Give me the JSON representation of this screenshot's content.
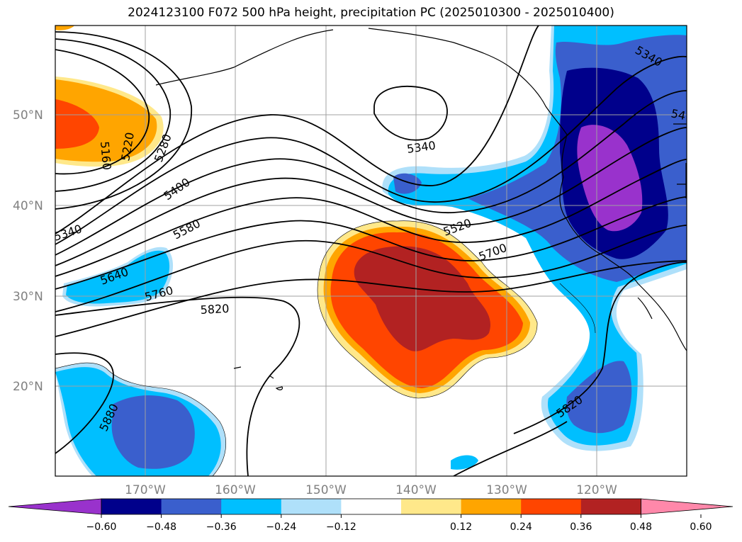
{
  "title": "2024123100 F072 500 hPa height, precipitation PC (2025010300 - 2025010400)",
  "lat_labels": [
    "50°N",
    "40°N",
    "30°N",
    "20°N"
  ],
  "lon_labels": [
    "170°W",
    "160°W",
    "150°W",
    "140°W",
    "130°W",
    "120°W"
  ],
  "contour_labels": [
    "5160",
    "5220",
    "5280",
    "5340",
    "5400",
    "5580",
    "5640",
    "5760",
    "5820",
    "5340",
    "5520",
    "5700",
    "5340",
    "54",
    "5820",
    "5880"
  ],
  "colorbar": {
    "ticks": [
      "−0.60",
      "−0.48",
      "−0.36",
      "−0.24",
      "−0.12",
      "0.12",
      "0.24",
      "0.36",
      "0.48",
      "0.60"
    ],
    "colors": [
      "#9932cc",
      "#00008b",
      "#3a5fcd",
      "#00bfff",
      "#afe0fa",
      "#ffffff",
      "#ffe88a",
      "#ffa500",
      "#ff4500",
      "#b22222",
      "#ff88aa"
    ]
  }
}
